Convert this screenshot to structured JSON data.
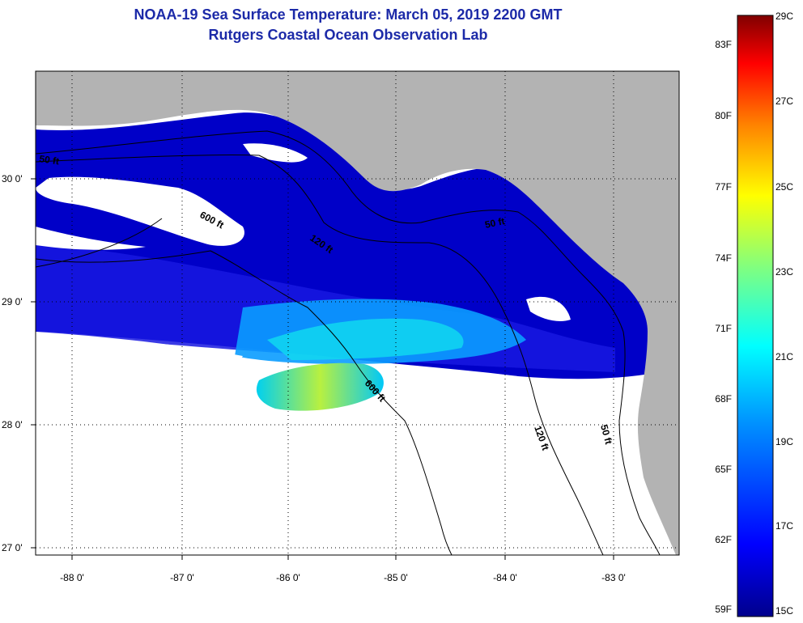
{
  "title": {
    "line1": "NOAA-19 Sea Surface Temperature:  March 05, 2019 2200 GMT",
    "line2": "Rutgers Coastal Ocean Observation Lab"
  },
  "map": {
    "lon_range": [
      -88.3,
      -82.5
    ],
    "lat_range": [
      27.0,
      30.85
    ],
    "lon_ticks": [
      {
        "value": -88,
        "label": "-88 0'"
      },
      {
        "value": -87,
        "label": "-87 0'"
      },
      {
        "value": -86,
        "label": "-86 0'"
      },
      {
        "value": -85,
        "label": "-85 0'"
      },
      {
        "value": -84,
        "label": "-84 0'"
      },
      {
        "value": -83,
        "label": "-83 0'"
      }
    ],
    "lat_ticks": [
      {
        "value": 30,
        "label": "30 0'"
      },
      {
        "value": 29,
        "label": "29 0'"
      },
      {
        "value": 28,
        "label": "28 0'"
      },
      {
        "value": 27,
        "label": "27 0'"
      }
    ],
    "contour_labels": [
      "50 ft",
      "600 ft",
      "120 ft",
      "50 ft",
      "600 ft",
      "120 ft",
      "50 ft"
    ],
    "colors": {
      "land": "#b3b3b3",
      "cloud": "#ffffff",
      "cold": "#0000c8",
      "warm": "#d8f000"
    }
  },
  "colorbar": {
    "fahrenheit": [
      "83F",
      "80F",
      "77F",
      "74F",
      "71F",
      "68F",
      "65F",
      "62F",
      "59F"
    ],
    "celsius": [
      "29C",
      "27C",
      "25C",
      "23C",
      "21C",
      "19C",
      "17C",
      "15C"
    ],
    "range_c": [
      15,
      29
    ]
  }
}
